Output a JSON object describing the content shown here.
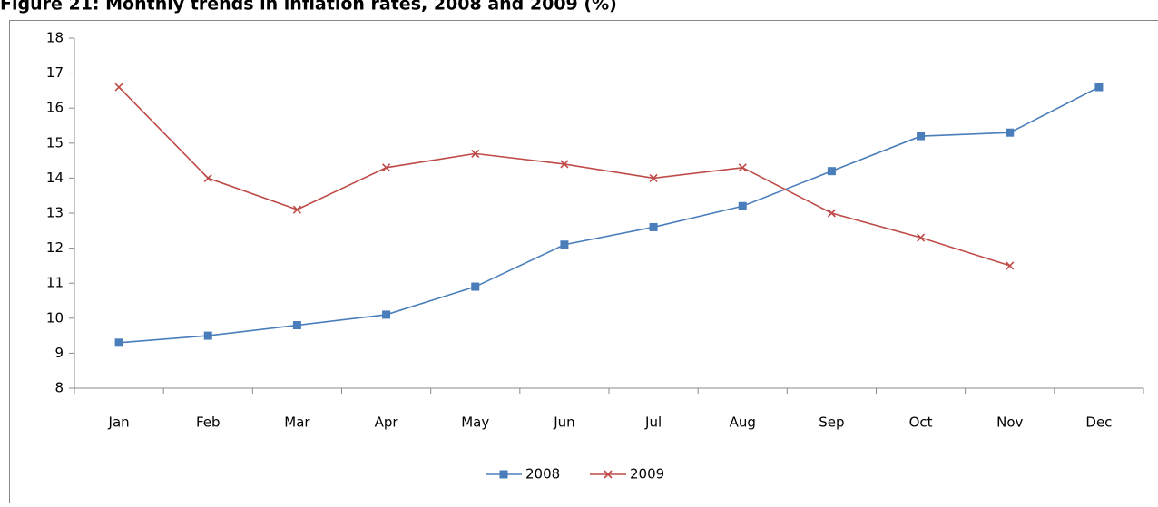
{
  "chart_data": {
    "type": "line",
    "title": "Figure 21: Monthly trends in inflation rates, 2008 and 2009 (%)",
    "categories": [
      "Jan",
      "Feb",
      "Mar",
      "Apr",
      "May",
      "Jun",
      "Jul",
      "Aug",
      "Sep",
      "Oct",
      "Nov",
      "Dec"
    ],
    "series": [
      {
        "name": "2008",
        "color": "#4a7ebb",
        "marker": "square",
        "values": [
          9.3,
          9.5,
          9.8,
          10.1,
          10.9,
          12.1,
          12.6,
          13.2,
          14.2,
          15.2,
          15.3,
          16.6
        ]
      },
      {
        "name": "2009",
        "color": "#be4b48",
        "marker": "x",
        "values": [
          16.6,
          14.0,
          13.1,
          14.3,
          14.7,
          14.4,
          14.0,
          14.3,
          13.0,
          12.3,
          11.5,
          null
        ]
      }
    ],
    "ylim": [
      8,
      18
    ],
    "yticks": [
      8,
      9,
      10,
      11,
      12,
      13,
      14,
      15,
      16,
      17,
      18
    ],
    "grid": false,
    "legend": "bottom"
  }
}
